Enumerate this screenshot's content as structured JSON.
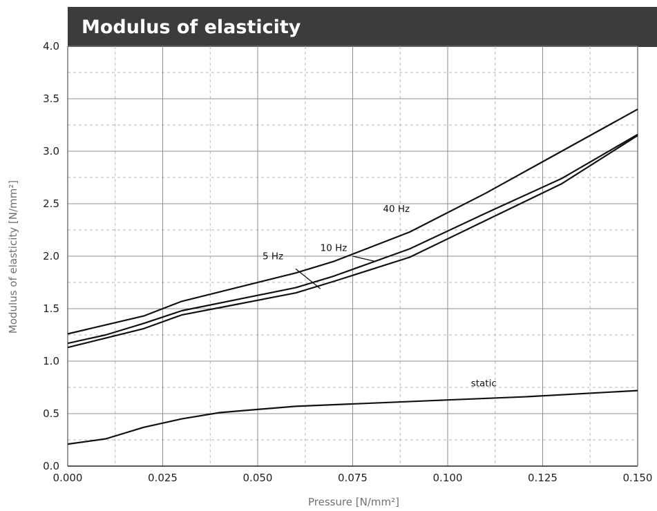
{
  "chart_data": {
    "type": "line",
    "title": "Modulus of elasticity",
    "xlabel": "Pressure [N/mm²]",
    "ylabel": "Modulus of elasticity [N/mm²]",
    "xlim": [
      0,
      0.15
    ],
    "ylim": [
      0,
      4
    ],
    "grid": true,
    "x_ticks": [
      "0.000",
      "0.025",
      "0.050",
      "0.075",
      "0.100",
      "0.125",
      "0.150"
    ],
    "y_ticks": [
      "0.0",
      "0.5",
      "1.0",
      "1.5",
      "2.0",
      "2.5",
      "3.0",
      "3.5",
      "4.0"
    ],
    "series": [
      {
        "name": "40 Hz",
        "x": [
          0,
          0.02,
          0.03,
          0.06,
          0.07,
          0.09,
          0.11,
          0.13,
          0.15
        ],
        "y": [
          1.26,
          1.43,
          1.57,
          1.84,
          1.95,
          2.23,
          2.6,
          3.0,
          3.4
        ]
      },
      {
        "name": "10 Hz",
        "x": [
          0,
          0.01,
          0.02,
          0.03,
          0.06,
          0.07,
          0.09,
          0.11,
          0.13,
          0.15
        ],
        "y": [
          1.17,
          1.25,
          1.36,
          1.48,
          1.7,
          1.81,
          2.07,
          2.41,
          2.74,
          3.16
        ]
      },
      {
        "name": "5 Hz",
        "x": [
          0,
          0.01,
          0.02,
          0.03,
          0.04,
          0.06,
          0.07,
          0.09,
          0.11,
          0.13,
          0.15
        ],
        "y": [
          1.13,
          1.22,
          1.31,
          1.44,
          1.51,
          1.65,
          1.76,
          1.99,
          2.34,
          2.69,
          3.15
        ]
      },
      {
        "name": "static",
        "x": [
          0,
          0.01,
          0.02,
          0.03,
          0.04,
          0.05,
          0.06,
          0.08,
          0.1,
          0.12,
          0.15
        ],
        "y": [
          0.21,
          0.26,
          0.37,
          0.45,
          0.51,
          0.54,
          0.57,
          0.6,
          0.63,
          0.66,
          0.72
        ]
      }
    ]
  }
}
